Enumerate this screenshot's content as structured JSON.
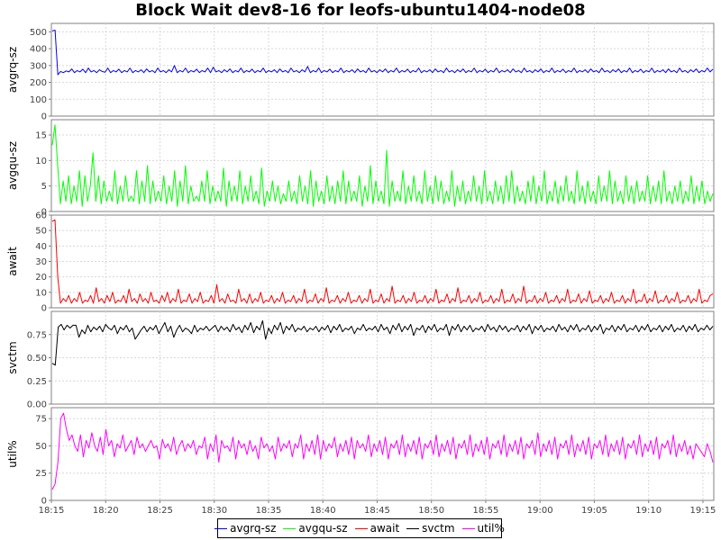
{
  "chart_data": {
    "type": "line",
    "title": "Block Wait dev8-16 for leofs-ubuntu1404-node08",
    "x_ticks": [
      "18:15",
      "18:20",
      "18:25",
      "18:30",
      "18:35",
      "18:40",
      "18:45",
      "18:50",
      "18:55",
      "19:00",
      "19:05",
      "19:10",
      "19:15"
    ],
    "x_range": [
      "18:15",
      "19:16"
    ],
    "grid": true,
    "legend_position": "bottom",
    "panels": [
      {
        "ylabel": "avgrq-sz",
        "series_name": "avgrq-sz",
        "color": "#0000ff",
        "ylim": [
          0,
          550
        ],
        "y_ticks": [
          "0",
          "100",
          "200",
          "300",
          "400",
          "500"
        ],
        "y_tick_values": [
          0,
          100,
          200,
          300,
          400,
          500
        ],
        "values": [
          505,
          510,
          245,
          265,
          258,
          268,
          262,
          280,
          258,
          270,
          262,
          278,
          258,
          285,
          262,
          270,
          258,
          275,
          265,
          260,
          285,
          258,
          270,
          262,
          278,
          258,
          270,
          262,
          285,
          258,
          270,
          262,
          275,
          258,
          280,
          262,
          270,
          258,
          285,
          262,
          270,
          258,
          275,
          262,
          300,
          258,
          270,
          262,
          285,
          258,
          270,
          262,
          278,
          258,
          270,
          262,
          285,
          258,
          290,
          262,
          270,
          258,
          275,
          262,
          280,
          258,
          270,
          262,
          285,
          258,
          270,
          262,
          278,
          258,
          270,
          262,
          285,
          258,
          270,
          262,
          275,
          258,
          280,
          262,
          270,
          258,
          285,
          262,
          270,
          258,
          275,
          262,
          295,
          258,
          270,
          262,
          285,
          258,
          270,
          262,
          278,
          258,
          270,
          262,
          285,
          258,
          270,
          262,
          275,
          258,
          280,
          262,
          270,
          258,
          285,
          262,
          270,
          258,
          275,
          262,
          280,
          258,
          270,
          262,
          285,
          258,
          270,
          262,
          278,
          258,
          270,
          262,
          285,
          258,
          270,
          262,
          275,
          258,
          280,
          262,
          270,
          258,
          285,
          262,
          270,
          258,
          275,
          262,
          280,
          258,
          270,
          262,
          285,
          258,
          270,
          262,
          278,
          258,
          270,
          262,
          285,
          258,
          270,
          262,
          275,
          258,
          280,
          262,
          270,
          258,
          285,
          262,
          270,
          258,
          275,
          262,
          280,
          258,
          270,
          262,
          285,
          258,
          270,
          262,
          278,
          258,
          270,
          262,
          285,
          258,
          270,
          262,
          275,
          258,
          280,
          262,
          270,
          258,
          285,
          262,
          270,
          258,
          275,
          262,
          280,
          258,
          270,
          262,
          285,
          258,
          270,
          262,
          278,
          258,
          270,
          262,
          285,
          258,
          270,
          262,
          275,
          258,
          280,
          262,
          270,
          258,
          285,
          262,
          270,
          258,
          275,
          262,
          280,
          258,
          270,
          262,
          285,
          262,
          278
        ]
      },
      {
        "ylabel": "avgqu-sz",
        "series_name": "avgqu-sz",
        "color": "#00ff00",
        "ylim": [
          0,
          18
        ],
        "y_ticks": [
          "0",
          "5",
          "10",
          "15"
        ],
        "y_tick_values": [
          0,
          5,
          10,
          15
        ],
        "values": [
          13,
          17,
          9,
          1.5,
          6,
          2,
          7,
          1.5,
          5,
          2,
          8,
          1,
          7,
          2,
          5,
          11.5,
          2,
          7,
          1.5,
          6,
          2,
          4,
          2,
          8,
          1.5,
          5,
          2,
          7,
          2,
          3,
          2,
          8,
          1.5,
          6,
          2,
          9,
          1.5,
          6,
          2,
          4,
          2,
          7,
          1.5,
          5,
          2,
          8,
          1,
          6,
          2,
          9,
          1.5,
          5,
          2,
          3,
          2,
          6,
          2,
          8,
          1.5,
          5,
          2,
          4,
          2,
          8.5,
          1,
          6,
          2,
          5,
          2,
          8,
          1.5,
          5,
          2,
          7,
          2,
          4,
          1.5,
          8.5,
          1,
          4,
          2,
          6,
          2,
          5,
          1.5,
          3.5,
          2,
          6,
          2,
          4,
          1.5,
          7,
          2,
          5,
          1.5,
          8,
          1,
          6,
          2,
          4,
          1.5,
          7,
          2,
          5,
          1.5,
          6,
          2,
          8,
          1.5,
          6,
          2,
          4,
          2,
          7,
          1,
          5,
          2,
          9,
          1.5,
          6,
          2,
          4,
          1.5,
          12,
          1,
          6,
          2,
          4,
          2,
          8,
          1.5,
          5,
          2,
          7,
          2,
          4,
          1.5,
          8,
          2,
          5,
          1.5,
          7,
          2,
          6,
          1.5,
          4,
          2,
          8,
          1,
          5,
          2,
          6,
          1.5,
          4,
          2,
          7,
          2,
          5,
          1.5,
          8,
          2,
          4,
          1.5,
          6,
          2,
          5,
          1.5,
          7,
          2,
          8,
          1.5,
          5,
          2,
          4,
          1.5,
          6,
          2,
          7,
          1.5,
          5,
          2,
          8,
          1.5,
          4,
          2,
          6,
          1.5,
          5,
          2,
          7,
          2,
          4,
          1.5,
          8,
          2,
          5,
          1.5,
          6,
          2,
          4,
          1.5,
          7,
          2,
          5,
          2,
          8,
          1.5,
          6,
          2,
          4,
          1.5,
          7,
          2,
          5,
          1.5,
          6,
          2,
          4,
          2,
          7,
          1.5,
          5,
          2,
          6,
          1.5,
          8,
          2,
          4,
          1.5,
          5,
          2,
          6,
          1.5,
          4,
          2,
          7,
          1.5,
          5,
          2,
          6,
          1.5,
          4,
          2,
          3.5
        ]
      },
      {
        "ylabel": "await",
        "series_name": "await",
        "color": "#ff0000",
        "ylim": [
          0,
          60
        ],
        "y_ticks": [
          "0",
          "10",
          "20",
          "30",
          "40",
          "50",
          "60"
        ],
        "y_tick_values": [
          0,
          10,
          20,
          30,
          40,
          50,
          60
        ],
        "values": [
          56,
          57,
          20,
          3,
          6,
          4,
          8,
          3,
          6,
          4,
          10,
          3,
          5,
          4,
          8,
          3,
          13,
          4,
          6,
          3,
          8,
          4,
          10,
          3,
          5,
          4,
          8,
          3,
          12,
          4,
          6,
          3,
          9,
          4,
          6,
          3,
          10,
          4,
          5,
          3,
          8,
          4,
          10,
          3,
          6,
          4,
          12,
          3,
          5,
          4,
          9,
          3,
          6,
          4,
          10,
          3,
          5,
          4,
          8,
          3,
          15,
          4,
          6,
          3,
          9,
          4,
          5,
          3,
          12,
          4,
          6,
          3,
          9,
          3,
          6,
          4,
          10,
          3,
          5,
          4,
          8,
          3,
          6,
          4,
          10,
          3,
          5,
          4,
          8,
          3,
          6,
          4,
          12,
          3,
          5,
          4,
          9,
          3,
          6,
          4,
          13,
          3,
          5,
          4,
          8,
          3,
          6,
          4,
          10,
          3,
          5,
          4,
          8,
          3,
          6,
          4,
          12,
          3,
          5,
          4,
          9,
          3,
          6,
          4,
          14,
          3,
          5,
          4,
          8,
          3,
          6,
          4,
          10,
          3,
          5,
          4,
          8,
          3,
          6,
          4,
          12,
          3,
          5,
          4,
          9,
          3,
          6,
          4,
          13,
          3,
          5,
          4,
          8,
          3,
          6,
          4,
          10,
          3,
          5,
          4,
          8,
          3,
          6,
          4,
          12,
          3,
          5,
          4,
          9,
          3,
          6,
          4,
          14,
          3,
          5,
          4,
          8,
          3,
          6,
          4,
          10,
          3,
          5,
          4,
          8,
          3,
          6,
          4,
          12,
          3,
          5,
          4,
          9,
          3,
          6,
          4,
          11,
          3,
          5,
          4,
          8,
          3,
          6,
          4,
          10,
          3,
          5,
          4,
          8,
          3,
          6,
          4,
          12,
          3,
          5,
          4,
          9,
          3,
          6,
          4,
          11,
          3,
          5,
          4,
          8,
          3,
          6,
          4,
          10,
          3,
          5,
          4,
          8,
          3,
          6,
          4,
          12,
          3,
          5,
          4,
          8,
          9
        ]
      },
      {
        "ylabel": "svctm",
        "series_name": "svctm",
        "color": "#000000",
        "ylim": [
          0,
          1
        ],
        "y_ticks": [
          "0.00",
          "0.25",
          "0.50",
          "0.75"
        ],
        "y_tick_values": [
          0,
          0.25,
          0.5,
          0.75
        ],
        "values": [
          0.44,
          0.42,
          0.83,
          0.86,
          0.8,
          0.85,
          0.82,
          0.85,
          0.85,
          0.72,
          0.8,
          0.76,
          0.85,
          0.78,
          0.83,
          0.8,
          0.84,
          0.78,
          0.86,
          0.82,
          0.8,
          0.85,
          0.76,
          0.83,
          0.8,
          0.85,
          0.78,
          0.82,
          0.7,
          0.75,
          0.8,
          0.84,
          0.78,
          0.83,
          0.8,
          0.85,
          0.76,
          0.82,
          0.88,
          0.78,
          0.84,
          0.72,
          0.8,
          0.85,
          0.78,
          0.82,
          0.8,
          0.76,
          0.85,
          0.78,
          0.82,
          0.8,
          0.84,
          0.79,
          0.82,
          0.85,
          0.78,
          0.84,
          0.8,
          0.83,
          0.78,
          0.86,
          0.8,
          0.83,
          0.77,
          0.85,
          0.8,
          0.88,
          0.77,
          0.84,
          0.8,
          0.9,
          0.7,
          0.82,
          0.76,
          0.85,
          0.8,
          0.88,
          0.76,
          0.84,
          0.8,
          0.86,
          0.78,
          0.82,
          0.8,
          0.84,
          0.78,
          0.82,
          0.8,
          0.84,
          0.78,
          0.83,
          0.8,
          0.85,
          0.77,
          0.84,
          0.8,
          0.86,
          0.78,
          0.82,
          0.8,
          0.84,
          0.76,
          0.82,
          0.8,
          0.86,
          0.79,
          0.82,
          0.8,
          0.84,
          0.78,
          0.86,
          0.8,
          0.83,
          0.76,
          0.85,
          0.8,
          0.87,
          0.78,
          0.84,
          0.8,
          0.86,
          0.74,
          0.82,
          0.8,
          0.85,
          0.77,
          0.84,
          0.8,
          0.86,
          0.78,
          0.82,
          0.8,
          0.86,
          0.74,
          0.84,
          0.8,
          0.86,
          0.78,
          0.84,
          0.8,
          0.85,
          0.78,
          0.82,
          0.8,
          0.84,
          0.78,
          0.86,
          0.8,
          0.83,
          0.78,
          0.85,
          0.8,
          0.84,
          0.78,
          0.82,
          0.8,
          0.85,
          0.78,
          0.84,
          0.8,
          0.86,
          0.76,
          0.84,
          0.8,
          0.85,
          0.78,
          0.82,
          0.8,
          0.84,
          0.78,
          0.86,
          0.8,
          0.83,
          0.78,
          0.85,
          0.8,
          0.86,
          0.78,
          0.82,
          0.8,
          0.85,
          0.78,
          0.84,
          0.8,
          0.86,
          0.76,
          0.82,
          0.8,
          0.85,
          0.78,
          0.84,
          0.8,
          0.86,
          0.78,
          0.82,
          0.8,
          0.85,
          0.78,
          0.84,
          0.8,
          0.86,
          0.78,
          0.82,
          0.8,
          0.85,
          0.78,
          0.84,
          0.8,
          0.86,
          0.78,
          0.82,
          0.8,
          0.85,
          0.78,
          0.84,
          0.8,
          0.86,
          0.78,
          0.82,
          0.8,
          0.85,
          0.8,
          0.84
        ]
      },
      {
        "ylabel": "util%",
        "series_name": "util%",
        "color": "#ff00ff",
        "ylim": [
          0,
          85
        ],
        "y_ticks": [
          "0",
          "25",
          "50",
          "75"
        ],
        "y_tick_values": [
          0,
          25,
          50,
          75
        ],
        "values": [
          10,
          15,
          35,
          75,
          80,
          65,
          55,
          60,
          50,
          45,
          60,
          40,
          55,
          48,
          62,
          50,
          45,
          58,
          42,
          65,
          50,
          55,
          40,
          52,
          48,
          60,
          45,
          50,
          55,
          42,
          58,
          48,
          52,
          45,
          50,
          55,
          48,
          50,
          38,
          56,
          48,
          52,
          45,
          58,
          42,
          50,
          55,
          45,
          52,
          48,
          55,
          42,
          50,
          48,
          58,
          38,
          52,
          45,
          60,
          35,
          55,
          48,
          50,
          45,
          58,
          38,
          55,
          48,
          52,
          42,
          55,
          45,
          50,
          38,
          58,
          48,
          52,
          45,
          50,
          38,
          58,
          45,
          52,
          48,
          55,
          40,
          52,
          48,
          60,
          38,
          52,
          45,
          55,
          42,
          60,
          38,
          55,
          45,
          52,
          48,
          58,
          40,
          52,
          45,
          55,
          42,
          58,
          38,
          55,
          48,
          52,
          45,
          60,
          40,
          52,
          45,
          55,
          42,
          58,
          38,
          52,
          48,
          55,
          42,
          60,
          40,
          52,
          45,
          55,
          42,
          58,
          38,
          52,
          48,
          55,
          42,
          60,
          40,
          52,
          45,
          55,
          42,
          58,
          38,
          52,
          48,
          55,
          42,
          60,
          40,
          52,
          45,
          55,
          42,
          58,
          38,
          52,
          48,
          55,
          42,
          60,
          40,
          52,
          45,
          55,
          42,
          58,
          38,
          52,
          48,
          55,
          42,
          62,
          40,
          52,
          45,
          55,
          42,
          58,
          38,
          52,
          48,
          55,
          42,
          60,
          40,
          52,
          45,
          55,
          42,
          58,
          38,
          52,
          48,
          55,
          42,
          60,
          40,
          52,
          45,
          55,
          42,
          58,
          38,
          52,
          48,
          55,
          42,
          60,
          40,
          52,
          45,
          55,
          42,
          58,
          38,
          52,
          48,
          55,
          42,
          60,
          40,
          52,
          45,
          55,
          42,
          50,
          38,
          52,
          48,
          44,
          40,
          52,
          45,
          35
        ]
      }
    ]
  },
  "legend": {
    "items": [
      {
        "label": "avgrq-sz",
        "color": "#0000ff"
      },
      {
        "label": "avgqu-sz",
        "color": "#00ff00"
      },
      {
        "label": "await",
        "color": "#ff0000"
      },
      {
        "label": "svctm",
        "color": "#000000"
      },
      {
        "label": "util%",
        "color": "#ff00ff"
      }
    ]
  }
}
